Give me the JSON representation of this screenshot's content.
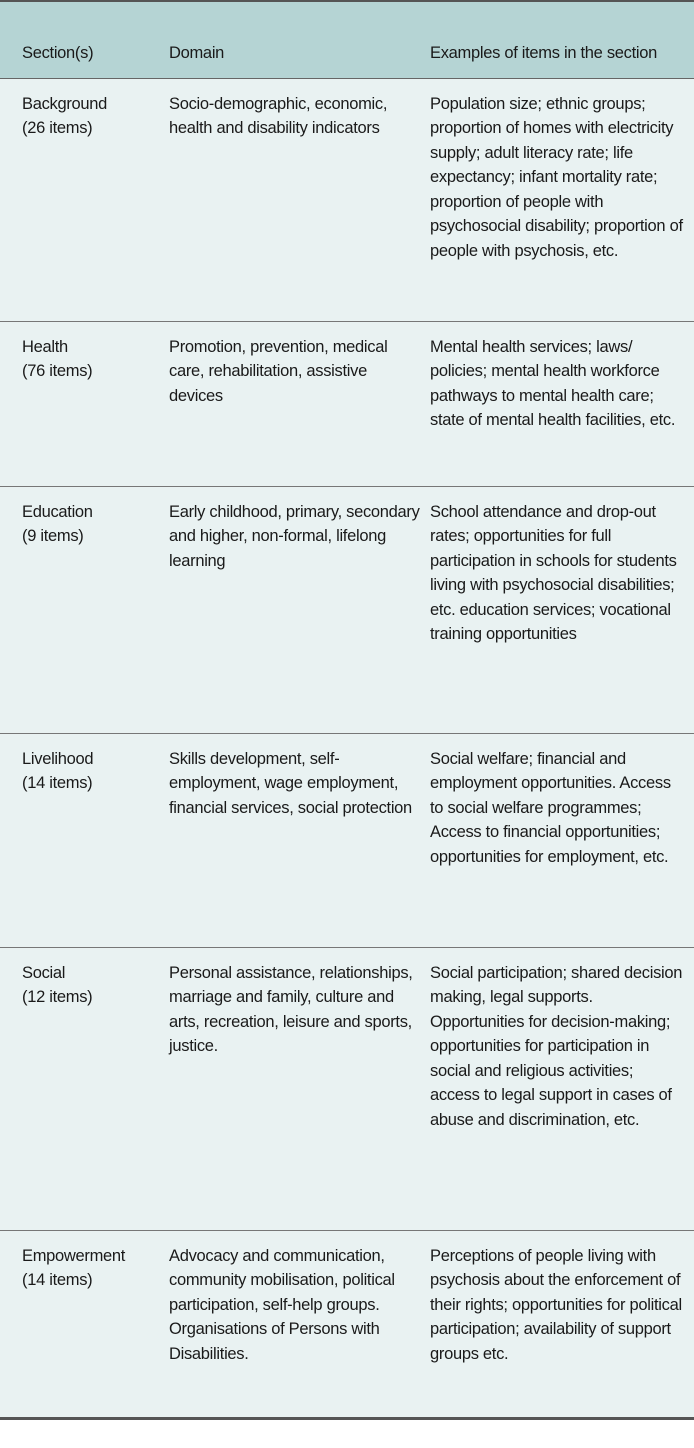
{
  "header": {
    "col1": "Section(s)",
    "col2": "Domain",
    "col3": "Examples of items in the section"
  },
  "rows": [
    {
      "section": "Background",
      "count": "(26 items)",
      "domain": "Socio-demographic, economic, health and disability indicators",
      "examples": "Population size; ethnic groups; proportion of homes with electricity supply; adult literacy rate; life expectancy; infant mortality rate; proportion of people with psychosocial disability; proportion of people with psychosis, etc."
    },
    {
      "section": "Health",
      "count": "(76 items)",
      "domain": "Promotion, prevention, medical care, rehabilitation, assistive devices",
      "examples": "Mental health services; laws/ policies; mental health workforce pathways to mental health care; state of mental health facilities, etc."
    },
    {
      "section": "Education",
      "count": "(9 items)",
      "domain": "Early childhood, primary, secondary and higher, non-formal, lifelong learning",
      "examples": "School attendance and drop-out rates; opportunities for full participation in schools for students living with psychosocial disabilities; etc. education services; vocational training opportunities"
    },
    {
      "section": "Livelihood",
      "count": "(14 items)",
      "domain": "Skills development, self-employment, wage employment, financial services, social protection",
      "examples": "Social welfare; financial and employment opportunities. Access to social welfare programmes; Access to financial opportunities; opportunities for employment, etc."
    },
    {
      "section": "Social",
      "count": "(12 items)",
      "domain": "Personal assistance, relationships, marriage and family, culture and arts, recreation, leisure and sports, justice.",
      "examples": "Social participation; shared decision making, legal supports. Opportunities for decision-making; opportunities for participation in social and religious activities; access to legal support in cases of abuse and discrimination, etc."
    },
    {
      "section": "Empowerment",
      "count": "(14 items)",
      "domain": "Advocacy and communication, community mobilisation, political participation, self-help groups. Organisations of Persons with Disabilities.",
      "examples": "Perceptions of people living with psychosis about the enforcement of their rights; opportunities for political participation; availability of support groups etc."
    }
  ],
  "colors": {
    "header_bg": "#b5d4d4",
    "body_bg": "#e9f2f2"
  }
}
